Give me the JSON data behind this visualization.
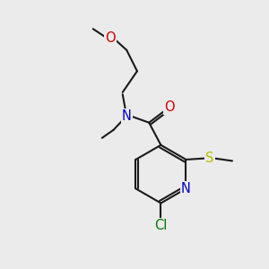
{
  "background_color": "#ebebeb",
  "bond_color": "#1a1a1a",
  "atom_colors": {
    "N": "#0000cc",
    "O": "#cc0000",
    "S": "#bbbb00",
    "Cl": "#007700",
    "C": "#1a1a1a"
  },
  "font_size": 9.5,
  "figsize": [
    3.0,
    3.0
  ],
  "dpi": 100
}
